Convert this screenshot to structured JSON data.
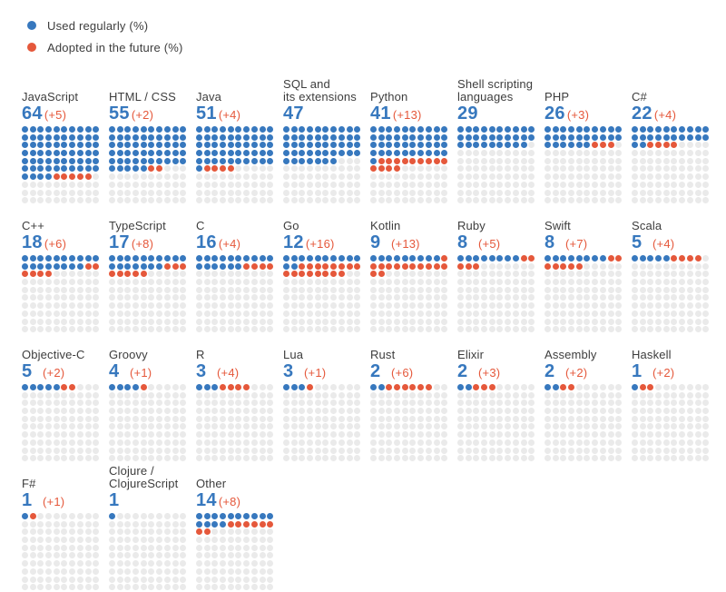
{
  "colors": {
    "used": "#3778BE",
    "adopted": "#E5583B",
    "empty": "#EAEAEA",
    "text": "#3D3D3D"
  },
  "legend": {
    "used_label": "Used regularly (%)",
    "adopted_label": "Adopted in the future (%)"
  },
  "chart_data": {
    "type": "waffle",
    "title": "",
    "grid": {
      "columns": 10,
      "rows": 10,
      "total": 100,
      "unit": "percent"
    },
    "series_labels": [
      "Used regularly (%)",
      "Adopted in the future (%)"
    ],
    "legend_position": "top-left",
    "items": [
      {
        "name": "JavaScript",
        "used": 64,
        "adopted": 5,
        "adopted_display": "(+5)"
      },
      {
        "name": "HTML / CSS",
        "used": 55,
        "adopted": 2,
        "adopted_display": "(+2)"
      },
      {
        "name": "Java",
        "used": 51,
        "adopted": 4,
        "adopted_display": "(+4)"
      },
      {
        "name": "SQL and\nits extensions",
        "used": 47
      },
      {
        "name": "Python",
        "used": 41,
        "adopted": 13,
        "adopted_display": "(+13)"
      },
      {
        "name": "Shell scripting\nlanguages",
        "used": 29
      },
      {
        "name": "PHP",
        "used": 26,
        "adopted": 3,
        "adopted_display": "(+3)"
      },
      {
        "name": "C#",
        "used": 22,
        "adopted": 4,
        "adopted_display": "(+4)"
      },
      {
        "name": "C++",
        "used": 18,
        "adopted": 6,
        "adopted_display": "(+6)"
      },
      {
        "name": "TypeScript",
        "used": 17,
        "adopted": 8,
        "adopted_display": "(+8)"
      },
      {
        "name": "C",
        "used": 16,
        "adopted": 4,
        "adopted_display": "(+4)"
      },
      {
        "name": "Go",
        "used": 12,
        "adopted": 16,
        "adopted_display": "(+16)"
      },
      {
        "name": "Kotlin",
        "used": 9,
        "adopted": 13,
        "adopted_display": "(+13)"
      },
      {
        "name": "Ruby",
        "used": 8,
        "adopted": 5,
        "adopted_display": "(+5)"
      },
      {
        "name": "Swift",
        "used": 8,
        "adopted": 7,
        "adopted_display": "(+7)"
      },
      {
        "name": "Scala",
        "used": 5,
        "adopted": 4,
        "adopted_display": "(+4)"
      },
      {
        "name": "Objective-C",
        "used": 5,
        "adopted": 2,
        "adopted_display": "(+2)"
      },
      {
        "name": "Groovy",
        "used": 4,
        "adopted": 1,
        "adopted_display": "(+1)"
      },
      {
        "name": "R",
        "used": 3,
        "adopted": 4,
        "adopted_display": "(+4)"
      },
      {
        "name": "Lua",
        "used": 3,
        "adopted": 1,
        "adopted_display": "(+1)"
      },
      {
        "name": "Rust",
        "used": 2,
        "adopted": 6,
        "adopted_display": "(+6)"
      },
      {
        "name": "Elixir",
        "used": 2,
        "adopted": 3,
        "adopted_display": "(+3)"
      },
      {
        "name": "Assembly",
        "used": 2,
        "adopted": 2,
        "adopted_display": "(+2)"
      },
      {
        "name": "Haskell",
        "used": 1,
        "adopted": 2,
        "adopted_display": "(+2)"
      },
      {
        "name": "F#",
        "used": 1,
        "adopted": 1,
        "adopted_display": "(+1)"
      },
      {
        "name": "Clojure /\nClojureScript",
        "used": 1
      },
      {
        "name": "Other",
        "used": 14,
        "adopted": 8,
        "adopted_display": "(+8)"
      }
    ]
  }
}
